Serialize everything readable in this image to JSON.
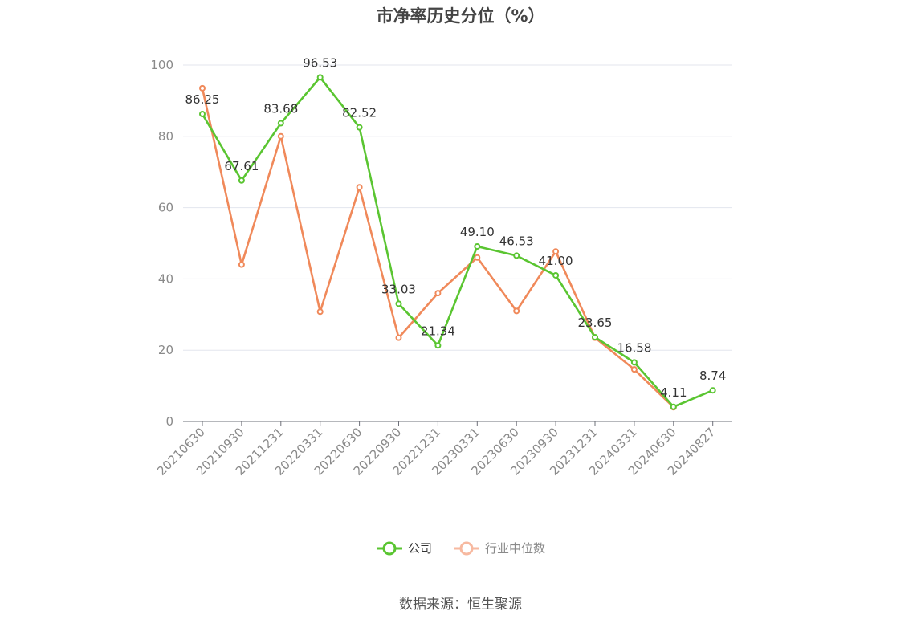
{
  "chart_data": {
    "type": "line",
    "title": "市净率历史分位（%）",
    "categories": [
      "20210630",
      "20210930",
      "20211231",
      "20220331",
      "20220630",
      "20220930",
      "20221231",
      "20230331",
      "20230630",
      "20230930",
      "20231231",
      "20240331",
      "20240630",
      "20240827"
    ],
    "ylim": [
      0,
      100
    ],
    "yticks": [
      0,
      20,
      40,
      60,
      80,
      100
    ],
    "grid": true,
    "legend_position": "bottom",
    "series": [
      {
        "name": "公司",
        "color": "#5ac531",
        "values": [
          86.25,
          67.61,
          83.68,
          96.53,
          82.52,
          33.03,
          21.34,
          49.1,
          46.53,
          41.0,
          23.65,
          16.58,
          4.11,
          8.74
        ],
        "labels": [
          "86.25",
          "67.61",
          "83.68",
          "96.53",
          "82.52",
          "33.03",
          "21.34",
          "49.10",
          "46.53",
          "41.00",
          "23.65",
          "16.58",
          "4.11",
          "8.74"
        ]
      },
      {
        "name": "行业中位数",
        "color": "#f0895a",
        "values": [
          93.5,
          44.0,
          80.0,
          30.8,
          65.7,
          23.5,
          36.0,
          46.0,
          31.0,
          47.7,
          23.5,
          14.6,
          4.0,
          null
        ]
      }
    ]
  },
  "legend": {
    "company": "公司",
    "industry": "行业中位数"
  },
  "source": "数据来源：恒生聚源"
}
